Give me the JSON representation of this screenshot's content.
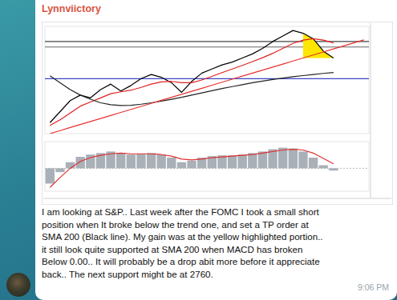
{
  "message": {
    "author": "Lynnviictory",
    "lines": [
      "I am looking at S&P.. Last week after the FOMC I took a small short",
      "position when It broke below the trend one, and set a TP order at",
      "SMA 200 (Black line). My gain was at the yellow highlighted portion..",
      "it still look quite supported at SMA 200 when MACD has broken",
      "Below 0.00.. It will probably be a drop abit more before it appreciate",
      "back.. The next support might be at 2760."
    ],
    "time": "9:06 PM"
  },
  "chart_data": [
    {
      "type": "line",
      "categories": [
        null,
        null,
        null,
        null,
        null,
        null,
        null,
        null,
        null,
        null,
        null,
        null,
        null,
        null,
        null,
        null,
        null,
        null,
        null,
        null,
        null,
        null,
        null,
        null,
        null,
        null,
        null,
        null,
        null,
        null,
        null,
        null
      ],
      "series": [
        {
          "color": "#000000",
          "values": [
            2600,
            2640,
            2680,
            2700,
            2690,
            2720,
            2740,
            2715,
            2735,
            2760,
            2775,
            2765,
            2745,
            2710,
            2750,
            2780,
            2795,
            2810,
            2820,
            2835,
            2850,
            2870,
            2895,
            2915,
            2935,
            2925,
            2905,
            2860,
            2835,
            null,
            null,
            null
          ]
        },
        {
          "color": "#e02020",
          "values": [
            2590,
            2610,
            2635,
            2660,
            2675,
            2690,
            2705,
            2712,
            2718,
            2728,
            2740,
            2748,
            2750,
            2745,
            2745,
            2755,
            2768,
            2782,
            2795,
            2808,
            2822,
            2836,
            2852,
            2870,
            2888,
            2900,
            2905,
            2900,
            2890,
            null,
            null,
            null
          ]
        },
        {
          "color": "#222222",
          "values": [
            2770,
            2745,
            2720,
            2700,
            2685,
            2672,
            2665,
            2662,
            2663,
            2667,
            2672,
            2678,
            2685,
            2692,
            2700,
            2708,
            2716,
            2724,
            2731,
            2738,
            2745,
            2751,
            2757,
            2762,
            2767,
            2771,
            2775,
            2779,
            2782,
            null,
            null,
            null
          ]
        },
        {
          "color": "#e83030",
          "values": [
            2560,
            2571,
            2582,
            2593,
            2604,
            2615,
            2626,
            2637,
            2648,
            2659,
            2670,
            2681,
            2692,
            2703,
            2714,
            2725,
            2736,
            2747,
            2758,
            2769,
            2780,
            2791,
            2802,
            2813,
            2824,
            2835,
            2846,
            2857,
            2868,
            2879,
            2890,
            2901
          ]
        }
      ],
      "levels": {
        "values": [
          2895,
          2875,
          2760
        ],
        "colors": [
          "#444444",
          "#666666",
          "#3b47c4"
        ]
      },
      "highlight": {
        "start": 25,
        "end": 28,
        "color": "#ffe600"
      },
      "ylim": [
        2560,
        2950
      ],
      "grid": false,
      "tick_labels": false
    },
    {
      "type": "bar",
      "categories": [
        null,
        null,
        null,
        null,
        null,
        null,
        null,
        null,
        null,
        null,
        null,
        null,
        null,
        null,
        null,
        null,
        null,
        null,
        null,
        null,
        null,
        null,
        null,
        null,
        null,
        null,
        null,
        null,
        null,
        null,
        null,
        null
      ],
      "series": [
        {
          "type": "bar",
          "color": "#a9b0b8",
          "values": [
            -20,
            -5,
            8,
            15,
            18,
            20,
            22,
            20,
            18,
            19,
            20,
            18,
            14,
            8,
            10,
            14,
            16,
            17,
            17,
            18,
            20,
            22,
            25,
            27,
            26,
            22,
            14,
            4,
            -3,
            null,
            null,
            null
          ]
        },
        {
          "type": "line",
          "color": "#e03030",
          "values": [
            -25,
            -12,
            0,
            9,
            14,
            17,
            19,
            20,
            19,
            19,
            19,
            18,
            16,
            12,
            11,
            12,
            14,
            15,
            16,
            17,
            18,
            20,
            22,
            24,
            25,
            24,
            20,
            13,
            6,
            null,
            null,
            null
          ]
        }
      ],
      "ylim": [
        -30,
        35
      ],
      "yticks": [
        0
      ],
      "grid": true,
      "tick_labels": false
    }
  ]
}
